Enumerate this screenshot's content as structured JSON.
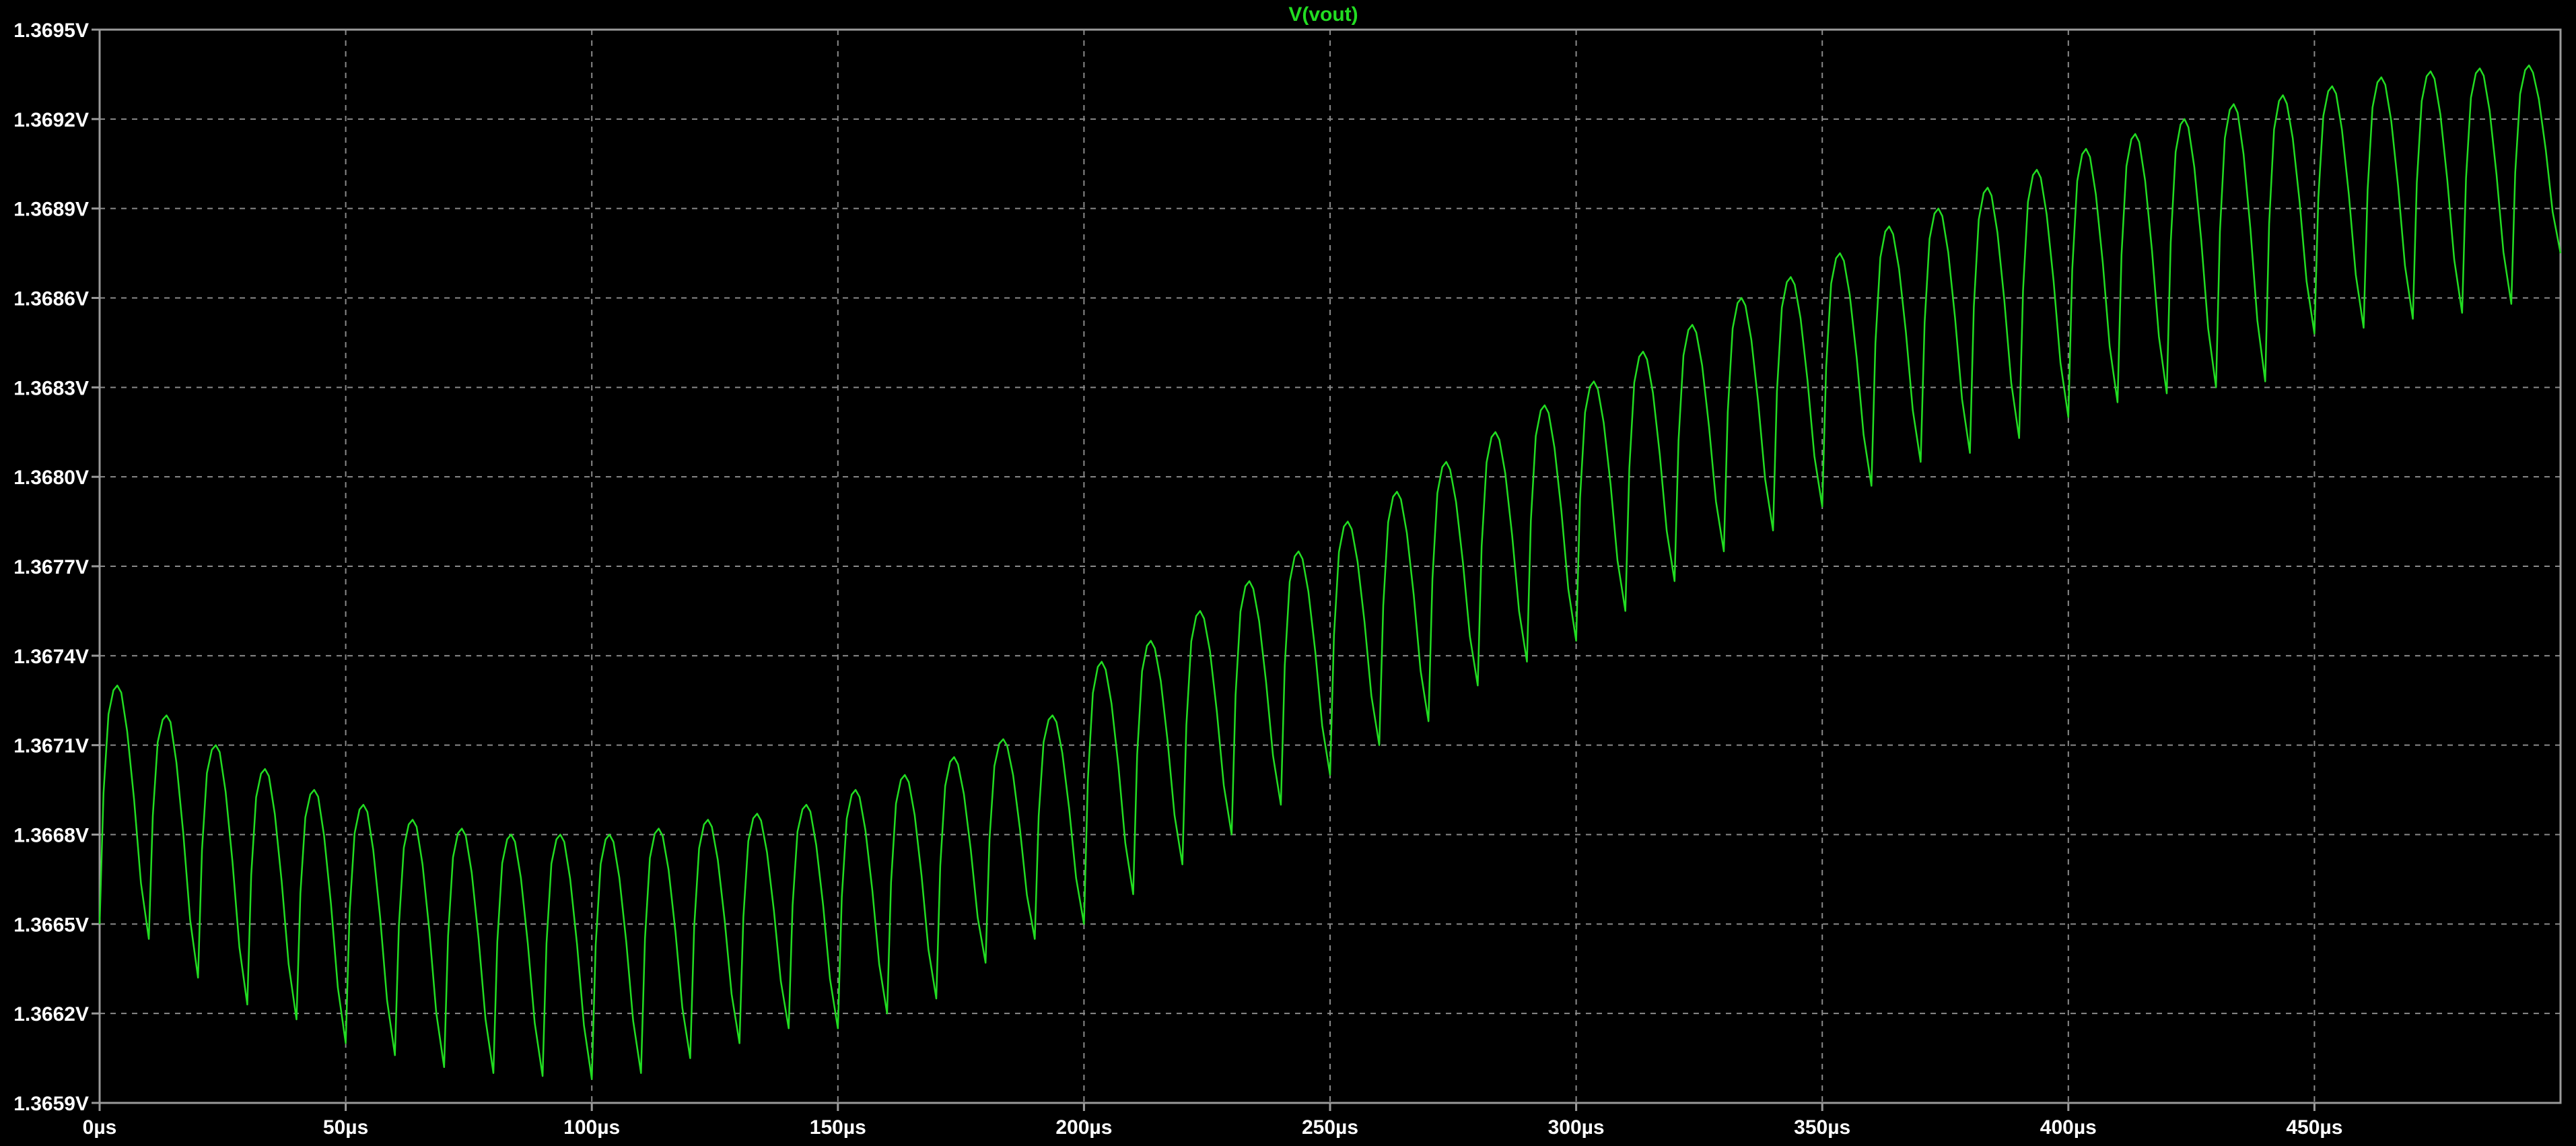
{
  "chart_data": {
    "type": "line",
    "title": "V(vout)",
    "xlabel": "",
    "ylabel": "",
    "x_unit": "µs",
    "y_unit": "V",
    "xlim": [
      0,
      500
    ],
    "ylim": [
      1.3659,
      1.3695
    ],
    "x_ticks": [
      0,
      50,
      100,
      150,
      200,
      250,
      300,
      350,
      400,
      450
    ],
    "x_tick_labels": [
      "0µs",
      "50µs",
      "100µs",
      "150µs",
      "200µs",
      "250µs",
      "300µs",
      "350µs",
      "400µs",
      "450µs"
    ],
    "y_ticks": [
      1.3695,
      1.3692,
      1.3689,
      1.3686,
      1.3683,
      1.368,
      1.3677,
      1.3674,
      1.3671,
      1.3668,
      1.3665,
      1.3662,
      1.3659
    ],
    "y_tick_labels": [
      "1.3695V",
      "1.3692V",
      "1.3689V",
      "1.3686V",
      "1.3683V",
      "1.3680V",
      "1.3677V",
      "1.3674V",
      "1.3671V",
      "1.3668V",
      "1.3665V",
      "1.3662V",
      "1.3659V"
    ],
    "grid": true,
    "series": [
      {
        "name": "V(vout)",
        "color": "#22dd22",
        "ripple_period_us": 10,
        "cycle_start_us": [
          0,
          10,
          20,
          30,
          40,
          50,
          60,
          70,
          80,
          90,
          100,
          110,
          120,
          130,
          140,
          150,
          160,
          170,
          180,
          190,
          200,
          210,
          220,
          230,
          240,
          250,
          260,
          270,
          280,
          290,
          300,
          310,
          320,
          330,
          340,
          350,
          360,
          370,
          380,
          390,
          400,
          410,
          420,
          430,
          440,
          450,
          460,
          470,
          480,
          490
        ],
        "cycle_peak_v": [
          1.3673,
          1.3672,
          1.3671,
          1.36702,
          1.36695,
          1.3669,
          1.36685,
          1.36682,
          1.3668,
          1.3668,
          1.3668,
          1.36682,
          1.36685,
          1.36687,
          1.3669,
          1.36695,
          1.367,
          1.36706,
          1.36712,
          1.3672,
          1.36738,
          1.36745,
          1.36755,
          1.36765,
          1.36775,
          1.36785,
          1.36795,
          1.36805,
          1.36815,
          1.36824,
          1.36832,
          1.36842,
          1.36851,
          1.3686,
          1.36867,
          1.36875,
          1.36884,
          1.3689,
          1.36897,
          1.36903,
          1.3691,
          1.36915,
          1.3692,
          1.36925,
          1.36928,
          1.36931,
          1.36934,
          1.36936,
          1.36937,
          1.36938
        ],
        "cycle_trough_v": [
          1.3665,
          1.36645,
          1.36632,
          1.36623,
          1.36618,
          1.3661,
          1.36606,
          1.36602,
          1.366,
          1.36599,
          1.36598,
          1.366,
          1.36605,
          1.3661,
          1.36615,
          1.36615,
          1.3662,
          1.36625,
          1.36637,
          1.36645,
          1.3665,
          1.3666,
          1.3667,
          1.3668,
          1.3669,
          1.367,
          1.3671,
          1.36718,
          1.3673,
          1.36738,
          1.36745,
          1.36755,
          1.36765,
          1.36775,
          1.36782,
          1.3679,
          1.36797,
          1.36805,
          1.36808,
          1.36813,
          1.3682,
          1.36825,
          1.36828,
          1.3683,
          1.36832,
          1.36848,
          1.3685,
          1.36853,
          1.36855,
          1.36858
        ],
        "end_point": {
          "x": 500,
          "y": 1.36875
        }
      }
    ]
  }
}
